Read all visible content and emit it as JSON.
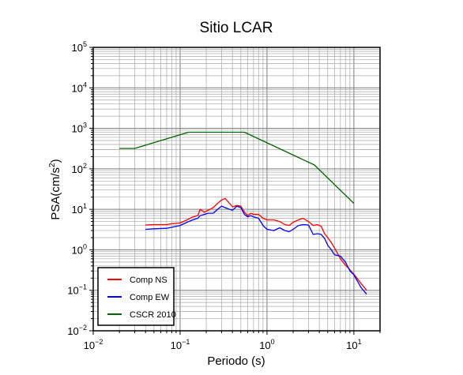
{
  "chart_data": {
    "type": "line",
    "title": "Sitio LCAR",
    "xlabel": "Periodo (s)",
    "ylabel_base": "PSA(cm/s",
    "ylabel_sup": "2",
    "ylabel_end": ")",
    "xscale": "log",
    "yscale": "log",
    "xlim": [
      0.01,
      20
    ],
    "ylim": [
      0.01,
      100000
    ],
    "grid": true,
    "legend_position": "bottom-left",
    "x_ticks": [
      {
        "value": 0.01,
        "base": "10",
        "exp": "−2"
      },
      {
        "value": 0.1,
        "base": "10",
        "exp": "−1"
      },
      {
        "value": 1,
        "base": "10",
        "exp": "0"
      },
      {
        "value": 10,
        "base": "10",
        "exp": "1"
      }
    ],
    "y_ticks": [
      {
        "value": 0.01,
        "base": "10",
        "exp": "−2"
      },
      {
        "value": 0.1,
        "base": "10",
        "exp": "−1"
      },
      {
        "value": 1,
        "base": "10",
        "exp": "0"
      },
      {
        "value": 10,
        "base": "10",
        "exp": "1"
      },
      {
        "value": 100,
        "base": "10",
        "exp": "2"
      },
      {
        "value": 1000,
        "base": "10",
        "exp": "3"
      },
      {
        "value": 10000,
        "base": "10",
        "exp": "4"
      },
      {
        "value": 100000,
        "base": "10",
        "exp": "5"
      }
    ],
    "series": [
      {
        "name": "Comp NS",
        "color": "#ff0000",
        "x": [
          0.04,
          0.05,
          0.07,
          0.08,
          0.1,
          0.12,
          0.14,
          0.16,
          0.17,
          0.19,
          0.21,
          0.24,
          0.27,
          0.3,
          0.33,
          0.37,
          0.4,
          0.45,
          0.5,
          0.55,
          0.6,
          0.65,
          0.7,
          0.8,
          0.9,
          1.0,
          1.2,
          1.4,
          1.6,
          1.8,
          2.0,
          2.3,
          2.6,
          3.0,
          3.4,
          3.8,
          4.2,
          4.6,
          5.0,
          5.5,
          6.0,
          7.0,
          8.0,
          9.0,
          10.0,
          12.0,
          14.0
        ],
        "y": [
          4.1,
          4.2,
          4.2,
          4.4,
          4.6,
          5.5,
          6.5,
          7.0,
          10.0,
          8.5,
          9.5,
          11.0,
          14.0,
          17.0,
          18.5,
          14.0,
          11.5,
          12.5,
          12.0,
          8.5,
          7.0,
          8.0,
          7.5,
          7.5,
          6.0,
          5.5,
          5.5,
          5.0,
          4.2,
          4.0,
          4.8,
          5.5,
          6.0,
          5.0,
          4.0,
          4.2,
          3.8,
          2.5,
          2.0,
          1.5,
          1.1,
          0.6,
          0.42,
          0.32,
          0.25,
          0.15,
          0.1
        ]
      },
      {
        "name": "Comp EW",
        "color": "#0000ff",
        "x": [
          0.04,
          0.05,
          0.07,
          0.08,
          0.1,
          0.12,
          0.14,
          0.16,
          0.17,
          0.19,
          0.21,
          0.24,
          0.27,
          0.3,
          0.33,
          0.37,
          0.4,
          0.45,
          0.5,
          0.55,
          0.6,
          0.65,
          0.7,
          0.8,
          0.9,
          1.0,
          1.2,
          1.4,
          1.6,
          1.8,
          2.0,
          2.3,
          2.6,
          3.0,
          3.4,
          3.8,
          4.2,
          4.6,
          5.0,
          5.5,
          6.0,
          7.0,
          8.0,
          9.0,
          10.0,
          12.0,
          14.0
        ],
        "y": [
          3.2,
          3.3,
          3.4,
          3.6,
          4.0,
          4.8,
          5.5,
          6.0,
          7.0,
          7.5,
          8.0,
          8.0,
          10.0,
          12.0,
          11.0,
          10.0,
          9.5,
          12.0,
          11.0,
          7.5,
          6.5,
          7.0,
          6.5,
          6.0,
          4.0,
          3.2,
          3.0,
          3.5,
          3.0,
          2.8,
          3.2,
          4.0,
          4.2,
          4.1,
          2.4,
          2.5,
          2.4,
          1.9,
          1.3,
          1.0,
          0.75,
          0.7,
          0.5,
          0.3,
          0.24,
          0.12,
          0.08
        ]
      },
      {
        "name": "CSCR 2010",
        "color": "#006400",
        "x": [
          0.02,
          0.03,
          0.125,
          0.55,
          3.5,
          10.0
        ],
        "y": [
          320,
          320,
          800,
          800,
          125,
          14
        ]
      }
    ]
  }
}
